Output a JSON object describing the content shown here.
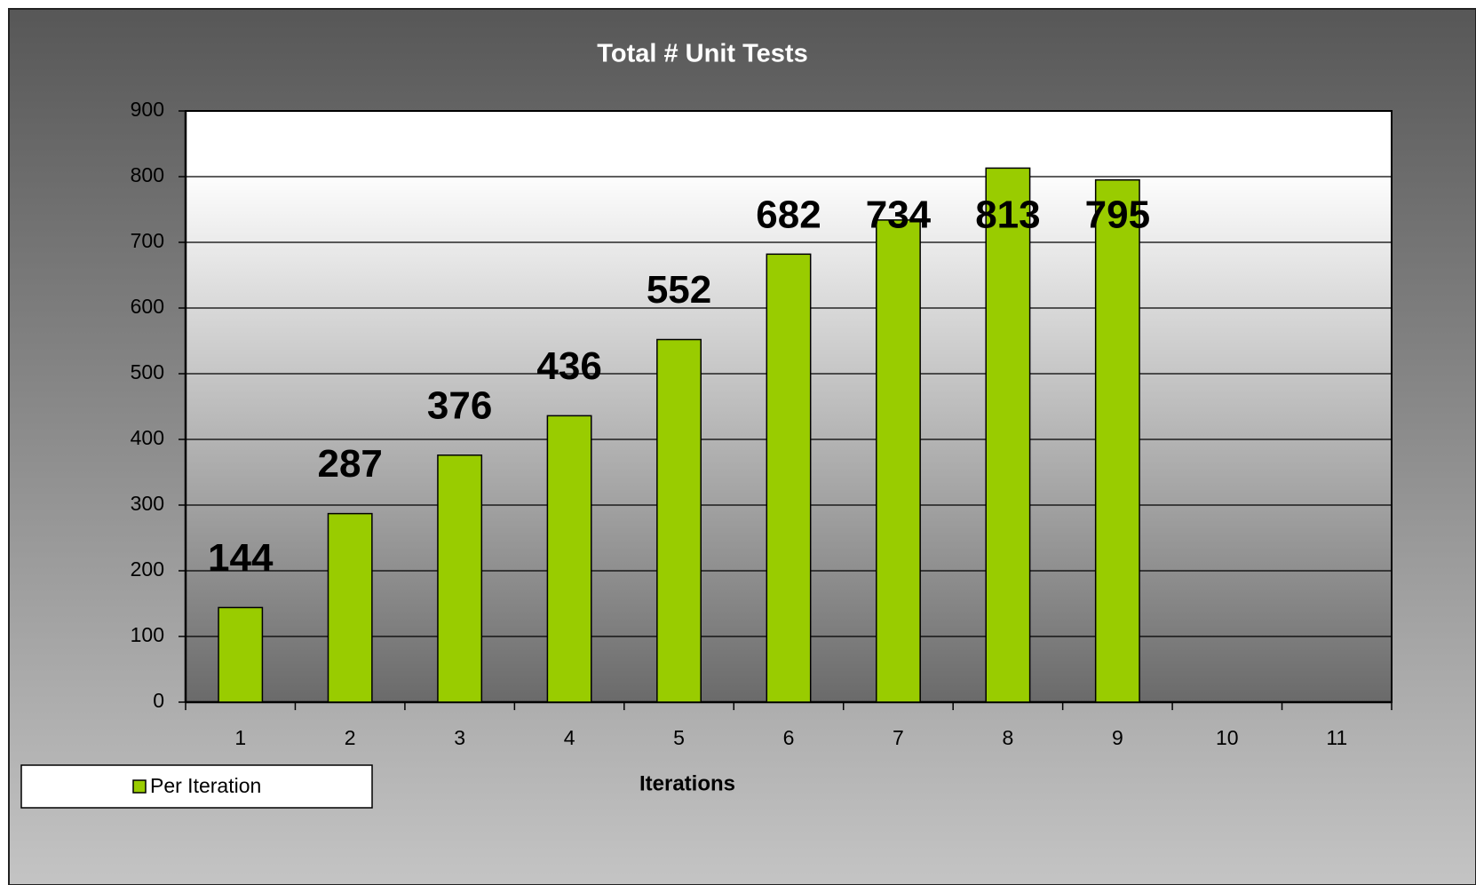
{
  "chart_data": {
    "type": "bar",
    "title": "Total # Unit Tests",
    "x_label": "Iterations",
    "categories": [
      "1",
      "2",
      "3",
      "4",
      "5",
      "6",
      "7",
      "8",
      "9",
      "10",
      "11"
    ],
    "series": [
      {
        "name": "Per Iteration",
        "color": "#99cc00",
        "values": [
          144,
          287,
          376,
          436,
          552,
          682,
          734,
          813,
          795,
          null,
          null
        ]
      }
    ],
    "ylim": [
      0,
      900
    ],
    "yticks": [
      0,
      100,
      200,
      300,
      400,
      500,
      600,
      700,
      800,
      900
    ],
    "grid": true
  }
}
